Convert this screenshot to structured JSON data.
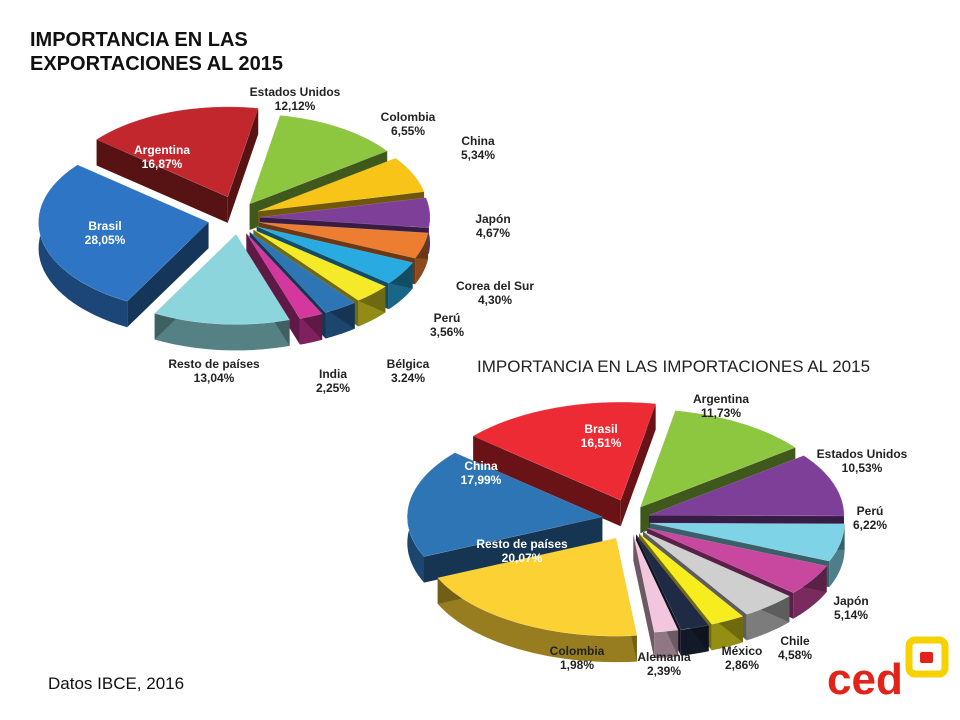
{
  "exports_title_line1": "IMPORTANCIA EN LAS",
  "exports_title_line2": "EXPORTACIONES AL 2015",
  "imports_title": "IMPORTANCIA EN LAS IMPORTACIONES AL 2015",
  "source": "Datos IBCE, 2016",
  "logo": {
    "text": "ced",
    "icon": "ced-logo-icon",
    "colors": [
      "#e2231a",
      "#f6d200"
    ]
  },
  "chart_data": [
    {
      "type": "pie",
      "title": "IMPORTANCIA EN LAS EXPORTACIONES AL 2015",
      "slices": [
        {
          "label": "Estados Unidos",
          "value": "12,12%",
          "pct": 12.12,
          "color": "#8dc63f"
        },
        {
          "label": "Colombia",
          "value": "6,55%",
          "pct": 6.55,
          "color": "#f7c417"
        },
        {
          "label": "China",
          "value": "5,34%",
          "pct": 5.34,
          "color": "#7e3f98"
        },
        {
          "label": "Japón",
          "value": "4,67%",
          "pct": 4.67,
          "color": "#ed7d31"
        },
        {
          "label": "Corea del Sur",
          "value": "4,30%",
          "pct": 4.3,
          "color": "#29abe2"
        },
        {
          "label": "Perú",
          "value": "3,56%",
          "pct": 3.56,
          "color": "#f4ea27"
        },
        {
          "label": "Bélgica",
          "value": "3.24%",
          "pct": 3.24,
          "color": "#2e75b6"
        },
        {
          "label": "India",
          "value": "2,25%",
          "pct": 2.25,
          "color": "#d4379e"
        },
        {
          "label": "Resto de países",
          "value": "13,04%",
          "pct": 13.04,
          "color": "#8dd5dc"
        },
        {
          "label": "Brasil",
          "value": "28,05%",
          "pct": 28.05,
          "color": "#2e75c6"
        },
        {
          "label": "Argentina",
          "value": "16,87%",
          "pct": 16.87,
          "color": "#c1272d"
        }
      ]
    },
    {
      "type": "pie",
      "title": "IMPORTANCIA EN LAS IMPORTACIONES AL 2015",
      "slices": [
        {
          "label": "Argentina",
          "value": "11,73%",
          "pct": 11.73,
          "color": "#8dc63f"
        },
        {
          "label": "Estados Unidos",
          "value": "10,53%",
          "pct": 10.53,
          "color": "#7e3f98"
        },
        {
          "label": "Perú",
          "value": "6,22%",
          "pct": 6.22,
          "color": "#7fd3e6"
        },
        {
          "label": "Japón",
          "value": "5,14%",
          "pct": 5.14,
          "color": "#c9489f"
        },
        {
          "label": "Chile",
          "value": "4,58%",
          "pct": 4.58,
          "color": "#cfcfcf"
        },
        {
          "label": "México",
          "value": "2,86%",
          "pct": 2.86,
          "color": "#f7ec1e"
        },
        {
          "label": "Alemania",
          "value": "2,39%",
          "pct": 2.39,
          "color": "#1f2a44"
        },
        {
          "label": "Colombia",
          "value": "1,98%",
          "pct": 1.98,
          "color": "#f2c6dc"
        },
        {
          "label": "Resto de países",
          "value": "20,07%",
          "pct": 20.07,
          "color": "#fbd134"
        },
        {
          "label": "China",
          "value": "17,99%",
          "pct": 17.99,
          "color": "#2e75b6"
        },
        {
          "label": "Brasil",
          "value": "16,51%",
          "pct": 16.51,
          "color": "#ec2b34"
        }
      ]
    }
  ]
}
